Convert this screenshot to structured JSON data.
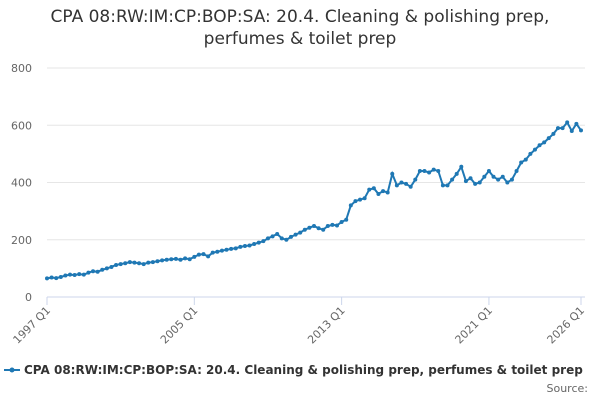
{
  "chart_data": {
    "type": "line",
    "title": "CPA 08:RW:IM:CP:BOP:SA: 20.4. Cleaning & polishing prep, perfumes & toilet prep",
    "source": "Source:",
    "categories": [
      "1997 Q1",
      null,
      null,
      null,
      null,
      null,
      null,
      null,
      null,
      null,
      null,
      null,
      null,
      null,
      null,
      null,
      null,
      null,
      null,
      null,
      null,
      null,
      null,
      null,
      null,
      null,
      null,
      null,
      null,
      null,
      null,
      null,
      "2005 Q1",
      null,
      null,
      null,
      null,
      null,
      null,
      null,
      null,
      null,
      null,
      null,
      null,
      null,
      null,
      null,
      null,
      null,
      null,
      null,
      null,
      null,
      null,
      null,
      null,
      null,
      null,
      null,
      null,
      null,
      null,
      null,
      "2013 Q1",
      null,
      null,
      null,
      null,
      null,
      null,
      null,
      null,
      null,
      null,
      null,
      null,
      null,
      null,
      null,
      null,
      null,
      null,
      null,
      null,
      null,
      null,
      null,
      null,
      null,
      null,
      null,
      null,
      null,
      null,
      null,
      "2021 Q1",
      null,
      null,
      null,
      null,
      null,
      null,
      null,
      null,
      null,
      null,
      null,
      null,
      null,
      null,
      null,
      null,
      null,
      null,
      null,
      "2026 Q1"
    ],
    "series": [
      {
        "name": "CPA 08:RW:IM:CP:BOP:SA: 20.4. Cleaning & polishing prep, perfumes & toilet prep",
        "color": "#1f78b4",
        "values": [
          65,
          68,
          66,
          70,
          75,
          78,
          77,
          80,
          78,
          85,
          90,
          88,
          95,
          100,
          105,
          112,
          115,
          118,
          122,
          120,
          118,
          115,
          120,
          122,
          125,
          128,
          130,
          132,
          133,
          130,
          135,
          132,
          140,
          148,
          150,
          142,
          155,
          158,
          162,
          165,
          168,
          170,
          175,
          178,
          180,
          185,
          190,
          195,
          205,
          212,
          220,
          205,
          200,
          210,
          218,
          225,
          235,
          242,
          248,
          240,
          235,
          248,
          252,
          250,
          262,
          270,
          320,
          335,
          340,
          345,
          375,
          380,
          360,
          370,
          365,
          430,
          390,
          400,
          395,
          385,
          410,
          440,
          440,
          435,
          445,
          440,
          390,
          390,
          410,
          430,
          455,
          405,
          415,
          395,
          400,
          420,
          440,
          420,
          410,
          420,
          400,
          410,
          440,
          470,
          480,
          500,
          515,
          530,
          540,
          555,
          570,
          590,
          590,
          610,
          580,
          605,
          582
        ]
      }
    ],
    "ylim": [
      0,
      800
    ],
    "yticks": [
      0,
      200,
      400,
      600,
      800
    ],
    "grid": true
  }
}
